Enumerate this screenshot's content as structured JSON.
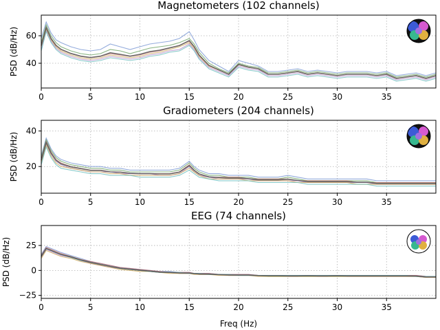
{
  "figure": {
    "xlabel": "Freq (Hz)"
  },
  "chart_data": [
    {
      "type": "line",
      "title": "Magnetometers (102 channels)",
      "xlabel": "",
      "ylabel": "PSD (dB/Hz)",
      "xlim": [
        0,
        40
      ],
      "ylim": [
        22,
        75
      ],
      "xticks": [
        0,
        5,
        10,
        15,
        20,
        25,
        30,
        35
      ],
      "yticks": [
        40,
        60
      ],
      "grid": true,
      "sensor_inset": "top-right",
      "x": [
        0,
        0.5,
        1,
        1.5,
        2,
        3,
        4,
        5,
        6,
        7,
        8,
        9,
        10,
        11,
        12,
        13,
        14,
        15,
        15.5,
        16,
        17,
        18,
        19,
        20,
        21,
        22,
        23,
        24,
        25,
        26,
        27,
        28,
        29,
        30,
        31,
        32,
        33,
        34,
        35,
        36,
        37,
        38,
        39,
        40
      ],
      "series": [
        {
          "color": "#6f8fd0",
          "values": [
            58,
            70,
            62,
            57,
            55,
            52,
            50,
            49,
            50,
            54,
            52,
            50,
            52,
            54,
            55,
            56,
            58,
            63,
            57,
            50,
            42,
            38,
            34,
            42,
            40,
            38,
            34,
            34,
            35,
            36,
            34,
            35,
            34,
            33,
            34,
            34,
            34,
            33,
            34,
            31,
            32,
            33,
            31,
            33
          ]
        },
        {
          "color": "#5f9a55",
          "values": [
            55,
            68,
            60,
            55,
            52,
            49,
            47,
            46,
            47,
            50,
            49,
            47,
            49,
            51,
            52,
            53,
            55,
            58,
            54,
            48,
            40,
            36,
            33,
            40,
            38,
            37,
            33,
            33,
            34,
            35,
            33,
            34,
            33,
            32,
            33,
            33,
            33,
            32,
            33,
            30,
            31,
            32,
            30,
            32
          ]
        },
        {
          "color": "#c06a6a",
          "values": [
            53,
            66,
            58,
            53,
            50,
            47,
            45,
            44,
            45,
            47,
            46,
            45,
            46,
            48,
            49,
            51,
            53,
            56,
            52,
            46,
            38,
            35,
            32,
            39,
            37,
            36,
            32,
            32,
            33,
            34,
            32,
            33,
            32,
            31,
            32,
            32,
            32,
            31,
            32,
            29,
            30,
            31,
            29,
            31
          ]
        },
        {
          "color": "#b085c8",
          "values": [
            50,
            64,
            56,
            51,
            48,
            45,
            43,
            42,
            43,
            45,
            44,
            43,
            44,
            46,
            47,
            49,
            50,
            54,
            50,
            44,
            37,
            34,
            31,
            38,
            36,
            35,
            31,
            31,
            32,
            33,
            31,
            32,
            31,
            30,
            31,
            31,
            31,
            30,
            31,
            28,
            29,
            30,
            28,
            30
          ]
        },
        {
          "color": "#c9a24e",
          "values": [
            52,
            65,
            57,
            52,
            49,
            46,
            44,
            43,
            44,
            46,
            45,
            44,
            45,
            47,
            48,
            50,
            52,
            55,
            51,
            45,
            38,
            35,
            32,
            39,
            37,
            36,
            32,
            32,
            33,
            34,
            32,
            33,
            32,
            31,
            32,
            32,
            32,
            31,
            32,
            29,
            30,
            31,
            29,
            31
          ]
        },
        {
          "color": "#5fb8b8",
          "values": [
            49,
            63,
            55,
            50,
            47,
            44,
            42,
            41,
            42,
            44,
            43,
            42,
            43,
            45,
            46,
            48,
            49,
            53,
            49,
            43,
            36,
            33,
            30,
            37,
            35,
            34,
            30,
            30,
            31,
            32,
            30,
            31,
            30,
            29,
            30,
            30,
            30,
            29,
            30,
            27,
            28,
            29,
            27,
            29
          ]
        }
      ]
    },
    {
      "type": "line",
      "title": "Gradiometers (204 channels)",
      "xlabel": "",
      "ylabel": "PSD (dB/Hz)",
      "xlim": [
        0,
        40
      ],
      "ylim": [
        5,
        46
      ],
      "xticks": [
        0,
        5,
        10,
        15,
        20,
        25,
        30,
        35
      ],
      "yticks": [
        20,
        40
      ],
      "grid": true,
      "sensor_inset": "top-right",
      "x": [
        0,
        0.5,
        1,
        1.5,
        2,
        3,
        4,
        5,
        6,
        7,
        8,
        9,
        10,
        11,
        12,
        13,
        14,
        15,
        15.5,
        16,
        17,
        18,
        19,
        20,
        21,
        22,
        23,
        24,
        25,
        26,
        27,
        28,
        29,
        30,
        31,
        32,
        33,
        34,
        35,
        36,
        37,
        38,
        39,
        40
      ],
      "series": [
        {
          "color": "#6f8fd0",
          "values": [
            26,
            36,
            30,
            26,
            24,
            22,
            21,
            20,
            20,
            19,
            19,
            18,
            18,
            18,
            18,
            18,
            19,
            23,
            20,
            18,
            16,
            16,
            15,
            15,
            15,
            14,
            14,
            14,
            15,
            14,
            13,
            13,
            13,
            13,
            13,
            13,
            13,
            12,
            12,
            12,
            12,
            12,
            12,
            12
          ]
        },
        {
          "color": "#5f9a55",
          "values": [
            25,
            35,
            29,
            25,
            23,
            21,
            20,
            19,
            19,
            18,
            18,
            17,
            17,
            17,
            17,
            17,
            18,
            22,
            19,
            17,
            15,
            15,
            14,
            14,
            14,
            13,
            13,
            13,
            14,
            13,
            12,
            12,
            12,
            12,
            12,
            12,
            12,
            11,
            11,
            11,
            11,
            11,
            11,
            11
          ]
        },
        {
          "color": "#c06a6a",
          "values": [
            24,
            34,
            28,
            24,
            22,
            20,
            19,
            18,
            18,
            17,
            17,
            16,
            16,
            16,
            16,
            16,
            17,
            21,
            18,
            16,
            14,
            14,
            14,
            14,
            13,
            13,
            13,
            13,
            13,
            12,
            12,
            12,
            12,
            12,
            12,
            11,
            11,
            11,
            11,
            11,
            11,
            11,
            11,
            11
          ]
        },
        {
          "color": "#b085c8",
          "values": [
            23,
            33,
            27,
            23,
            21,
            19,
            18,
            17,
            17,
            17,
            16,
            16,
            16,
            16,
            15,
            15,
            16,
            20,
            17,
            15,
            14,
            13,
            13,
            13,
            13,
            12,
            12,
            12,
            12,
            12,
            11,
            11,
            11,
            11,
            11,
            11,
            11,
            10,
            10,
            10,
            10,
            10,
            10,
            10
          ]
        },
        {
          "color": "#c9a24e",
          "values": [
            22,
            32,
            26,
            22,
            20,
            19,
            18,
            17,
            17,
            16,
            16,
            15,
            15,
            15,
            15,
            15,
            16,
            19,
            17,
            15,
            13,
            13,
            13,
            13,
            12,
            12,
            12,
            12,
            12,
            11,
            11,
            11,
            11,
            11,
            11,
            10,
            10,
            10,
            10,
            10,
            10,
            10,
            10,
            10
          ]
        },
        {
          "color": "#5fb8b8",
          "values": [
            21,
            31,
            25,
            21,
            19,
            18,
            17,
            16,
            16,
            15,
            15,
            15,
            14,
            14,
            14,
            14,
            15,
            18,
            16,
            14,
            13,
            12,
            12,
            12,
            12,
            11,
            11,
            11,
            11,
            11,
            10,
            10,
            10,
            10,
            10,
            10,
            10,
            9,
            9,
            9,
            9,
            9,
            9,
            9
          ]
        }
      ]
    },
    {
      "type": "line",
      "title": "EEG (74 channels)",
      "xlabel": "Freq (Hz)",
      "ylabel": "PSD (dB/Hz)",
      "xlim": [
        0,
        40
      ],
      "ylim": [
        -28,
        45
      ],
      "xticks": [
        0,
        5,
        10,
        15,
        20,
        25,
        30,
        35
      ],
      "yticks": [
        -25,
        0,
        25
      ],
      "grid": true,
      "sensor_inset": "top-right",
      "x": [
        0,
        0.5,
        1,
        1.5,
        2,
        3,
        4,
        5,
        6,
        7,
        8,
        9,
        10,
        11,
        12,
        13,
        14,
        15,
        15.5,
        16,
        17,
        18,
        19,
        20,
        21,
        22,
        23,
        24,
        25,
        26,
        27,
        28,
        29,
        30,
        31,
        32,
        33,
        34,
        35,
        36,
        37,
        38,
        39,
        40
      ],
      "series": [
        {
          "color": "#6f8fd0",
          "values": [
            16,
            24,
            22,
            20,
            18,
            15,
            12,
            9,
            7,
            5,
            3,
            2,
            1,
            0,
            -1,
            -1,
            -2,
            -2,
            -3,
            -3,
            -3,
            -4,
            -4,
            -4,
            -4,
            -5,
            -5,
            -5,
            -5,
            -5,
            -5,
            -5,
            -5,
            -5,
            -5,
            -5,
            -5,
            -5,
            -5,
            -5,
            -5,
            -5,
            -6,
            -6
          ]
        },
        {
          "color": "#5f9a55",
          "values": [
            14,
            22,
            20,
            18,
            16,
            14,
            11,
            8,
            6,
            4,
            2,
            1,
            0,
            -1,
            -2,
            -2,
            -3,
            -3,
            -3,
            -4,
            -4,
            -4,
            -5,
            -5,
            -5,
            -5,
            -6,
            -6,
            -6,
            -6,
            -6,
            -6,
            -6,
            -6,
            -6,
            -6,
            -6,
            -6,
            -6,
            -6,
            -6,
            -6,
            -7,
            -7
          ]
        },
        {
          "color": "#c06a6a",
          "values": [
            15,
            23,
            21,
            19,
            17,
            14,
            11,
            9,
            7,
            5,
            3,
            2,
            1,
            0,
            -1,
            -2,
            -2,
            -2,
            -3,
            -3,
            -3,
            -4,
            -4,
            -4,
            -4,
            -5,
            -5,
            -5,
            -5,
            -5,
            -5,
            -5,
            -5,
            -5,
            -5,
            -5,
            -5,
            -5,
            -5,
            -5,
            -5,
            -5,
            -6,
            -6
          ]
        },
        {
          "color": "#b085c8",
          "values": [
            13,
            21,
            19,
            17,
            15,
            13,
            10,
            7,
            5,
            3,
            2,
            1,
            0,
            -1,
            -2,
            -2,
            -3,
            -3,
            -3,
            -4,
            -4,
            -4,
            -5,
            -5,
            -5,
            -5,
            -5,
            -5,
            -6,
            -6,
            -5,
            -6,
            -6,
            -5,
            -6,
            -6,
            -6,
            -6,
            -6,
            -6,
            -6,
            -6,
            -7,
            -7
          ]
        },
        {
          "color": "#c9a24e",
          "values": [
            12,
            20,
            18,
            16,
            14,
            12,
            9,
            7,
            5,
            3,
            1,
            0,
            -1,
            -1,
            -2,
            -3,
            -3,
            -3,
            -4,
            -4,
            -4,
            -5,
            -5,
            -5,
            -5,
            -6,
            -6,
            -6,
            -6,
            -6,
            -6,
            -6,
            -6,
            -6,
            -6,
            -6,
            -6,
            -6,
            -6,
            -6,
            -6,
            -6,
            -7,
            -7
          ]
        },
        {
          "color": "#5fb8b8",
          "values": [
            14,
            22,
            20,
            18,
            16,
            13,
            10,
            8,
            6,
            4,
            2,
            1,
            0,
            -1,
            -2,
            -2,
            -2,
            -3,
            -3,
            -3,
            -4,
            -4,
            -4,
            -5,
            -5,
            -5,
            -5,
            -5,
            -5,
            -5,
            -5,
            -5,
            -5,
            -5,
            -5,
            -5,
            -5,
            -5,
            -5,
            -5,
            -5,
            -6,
            -6,
            -6
          ]
        }
      ]
    }
  ]
}
